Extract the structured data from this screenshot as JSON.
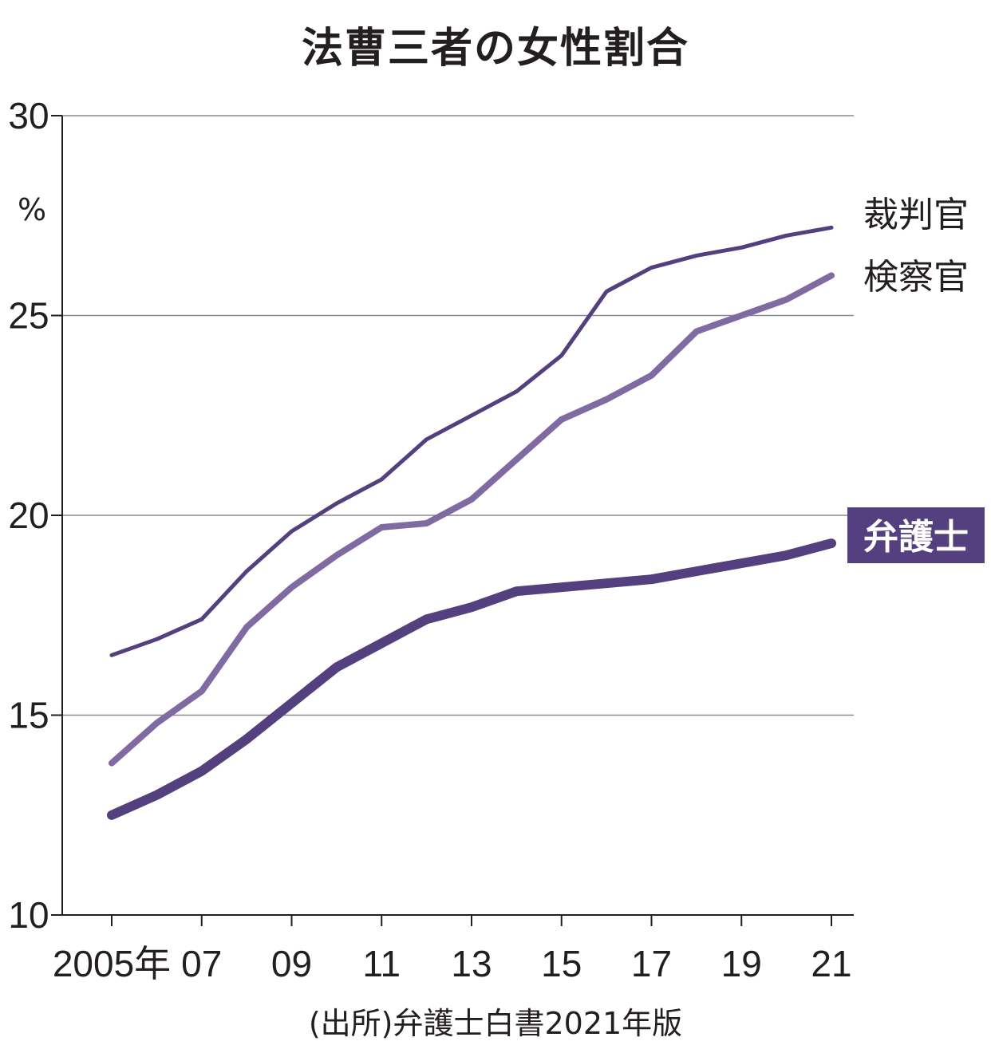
{
  "chart_data": {
    "type": "line",
    "title": "法曹三者の女性割合",
    "ylabel": "%",
    "ylim": [
      10,
      30
    ],
    "yticks": [
      10,
      15,
      20,
      25,
      30
    ],
    "x": [
      2005,
      2006,
      2007,
      2008,
      2009,
      2010,
      2011,
      2012,
      2013,
      2014,
      2015,
      2016,
      2017,
      2018,
      2019,
      2020,
      2021
    ],
    "xticks": [
      2005,
      2007,
      2009,
      2011,
      2013,
      2015,
      2017,
      2019,
      2021
    ],
    "xtick_labels": [
      "2005年",
      "07",
      "09",
      "11",
      "13",
      "15",
      "17",
      "19",
      "21"
    ],
    "series": [
      {
        "name": "裁判官",
        "color": "#54407e",
        "values": [
          16.5,
          16.9,
          17.4,
          18.6,
          19.6,
          20.3,
          20.9,
          21.9,
          22.5,
          23.1,
          24.0,
          25.6,
          26.2,
          26.5,
          26.7,
          27.0,
          27.2
        ]
      },
      {
        "name": "検察官",
        "color": "#7f6aa1",
        "values": [
          13.8,
          14.8,
          15.6,
          17.2,
          18.2,
          19.0,
          19.7,
          19.8,
          20.4,
          21.4,
          22.4,
          22.9,
          23.5,
          24.6,
          25.0,
          25.4,
          26.0
        ]
      },
      {
        "name": "弁護士",
        "color": "#54407e",
        "values": [
          12.5,
          13.0,
          13.6,
          14.4,
          15.3,
          16.2,
          16.8,
          17.4,
          17.7,
          18.1,
          18.2,
          18.3,
          18.4,
          18.6,
          18.8,
          19.0,
          19.3
        ]
      }
    ],
    "grid": true
  },
  "source": "(出所)弁護士白書2021年版"
}
